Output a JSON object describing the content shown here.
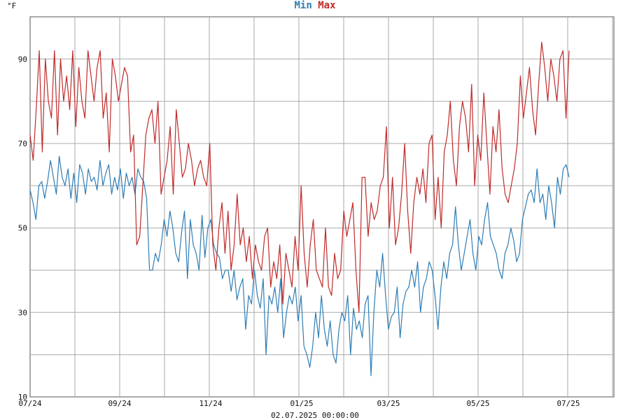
{
  "chart_data": {
    "type": "line",
    "unit_label": "°F",
    "footer": "02.07.2025 00:00:00",
    "x_tick_labels": [
      "07/24",
      "09/24",
      "11/24",
      "01/25",
      "03/25",
      "05/25",
      "07/25"
    ],
    "y_tick_labels": [
      "10",
      "30",
      "50",
      "70",
      "90"
    ],
    "ylim": [
      10,
      100
    ],
    "grid": true,
    "legend_position": "top-center",
    "colors": {
      "min": "#2e7db5",
      "max": "#c02a2a",
      "grid": "#aaaaaa",
      "axis": "#555555"
    },
    "series": [
      {
        "name": "Min",
        "values": [
          59,
          56,
          52,
          60,
          61,
          57,
          61,
          66,
          62,
          58,
          67,
          62,
          60,
          64,
          57,
          63,
          56,
          65,
          63,
          58,
          64,
          61,
          62,
          59,
          66,
          60,
          63,
          65,
          58,
          62,
          59,
          64,
          57,
          63,
          60,
          62,
          58,
          64,
          62,
          61,
          57,
          40,
          40,
          44,
          42,
          46,
          52,
          48,
          54,
          50,
          44,
          42,
          49,
          54,
          38,
          52,
          46,
          44,
          40,
          53,
          43,
          50,
          52,
          46,
          44,
          43,
          38,
          40,
          40,
          35,
          40,
          33,
          36,
          38,
          26,
          34,
          32,
          40,
          34,
          31,
          38,
          20,
          34,
          32,
          36,
          30,
          38,
          24,
          30,
          34,
          32,
          36,
          28,
          34,
          22,
          20,
          17,
          22,
          30,
          24,
          34,
          26,
          22,
          28,
          20,
          18,
          26,
          30,
          28,
          34,
          20,
          31,
          26,
          28,
          24,
          32,
          34,
          15,
          30,
          40,
          36,
          44,
          34,
          26,
          29,
          30,
          36,
          24,
          32,
          35,
          36,
          40,
          36,
          42,
          30,
          36,
          38,
          42,
          40,
          34,
          26,
          36,
          42,
          38,
          44,
          46,
          55,
          46,
          40,
          44,
          48,
          52,
          44,
          40,
          48,
          46,
          52,
          56,
          48,
          46,
          44,
          40,
          38,
          44,
          46,
          50,
          47,
          42,
          44,
          52,
          55,
          58,
          59,
          56,
          64,
          56,
          58,
          52,
          60,
          56,
          50,
          62,
          58,
          64,
          65,
          62
        ],
        "text": "Min"
      },
      {
        "name": "Max",
        "values": [
          72,
          66,
          78,
          92,
          68,
          90,
          80,
          76,
          92,
          72,
          90,
          80,
          86,
          78,
          92,
          74,
          88,
          80,
          76,
          92,
          86,
          80,
          88,
          92,
          76,
          82,
          68,
          90,
          86,
          80,
          84,
          88,
          86,
          68,
          72,
          46,
          48,
          60,
          72,
          76,
          78,
          70,
          80,
          58,
          62,
          66,
          74,
          58,
          78,
          70,
          62,
          64,
          70,
          66,
          60,
          64,
          66,
          62,
          60,
          70,
          46,
          40,
          50,
          56,
          44,
          54,
          40,
          46,
          58,
          46,
          50,
          42,
          48,
          38,
          46,
          42,
          40,
          48,
          50,
          36,
          42,
          38,
          46,
          32,
          44,
          40,
          36,
          48,
          40,
          60,
          44,
          36,
          46,
          52,
          40,
          38,
          36,
          50,
          36,
          34,
          44,
          38,
          40,
          54,
          48,
          52,
          56,
          40,
          30,
          62,
          62,
          48,
          56,
          52,
          54,
          60,
          62,
          74,
          50,
          62,
          46,
          50,
          58,
          70,
          54,
          44,
          56,
          62,
          58,
          64,
          56,
          70,
          72,
          52,
          62,
          50,
          68,
          72,
          80,
          66,
          60,
          74,
          80,
          76,
          68,
          84,
          60,
          72,
          66,
          82,
          70,
          58,
          74,
          68,
          78,
          64,
          58,
          56,
          60,
          64,
          70,
          86,
          76,
          82,
          88,
          78,
          72,
          84,
          94,
          88,
          80,
          90,
          86,
          80,
          90,
          92,
          76,
          92
        ],
        "text": "Max"
      }
    ]
  }
}
